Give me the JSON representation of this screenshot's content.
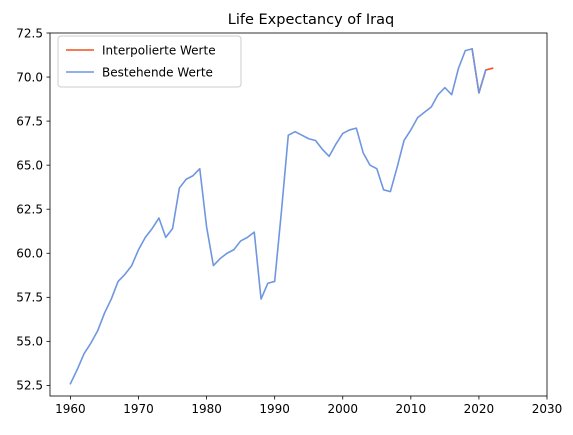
{
  "chart_data": {
    "type": "line",
    "title": "Life Expectancy of Iraq",
    "xlabel": "",
    "ylabel": "",
    "xlim": [
      1957,
      2030
    ],
    "ylim": [
      51.9,
      72.5
    ],
    "xticks": [
      1960,
      1970,
      1980,
      1990,
      2000,
      2010,
      2020,
      2030
    ],
    "yticks": [
      52.5,
      55.0,
      57.5,
      60.0,
      62.5,
      65.0,
      67.5,
      70.0,
      72.5
    ],
    "grid": false,
    "legend_position": "top-left",
    "series": [
      {
        "name": "Interpolierte Werte",
        "color": "#f4511e",
        "x": [
          2019,
          2020,
          2021,
          2022
        ],
        "y": [
          71.6,
          69.1,
          70.4,
          70.5
        ]
      },
      {
        "name": "Bestehende Werte",
        "color": "#6f96e0",
        "x": [
          1960,
          1961,
          1962,
          1963,
          1964,
          1965,
          1966,
          1967,
          1968,
          1969,
          1970,
          1971,
          1972,
          1973,
          1974,
          1975,
          1976,
          1977,
          1978,
          1979,
          1980,
          1981,
          1982,
          1983,
          1984,
          1985,
          1986,
          1987,
          1988,
          1989,
          1990,
          1991,
          1992,
          1993,
          1994,
          1995,
          1996,
          1997,
          1998,
          1999,
          2000,
          2001,
          2002,
          2003,
          2004,
          2005,
          2006,
          2007,
          2008,
          2009,
          2010,
          2011,
          2012,
          2013,
          2014,
          2015,
          2016,
          2017,
          2018,
          2019,
          2020,
          2021
        ],
        "y": [
          52.6,
          53.4,
          54.3,
          54.9,
          55.6,
          56.6,
          57.4,
          58.4,
          58.8,
          59.3,
          60.2,
          60.9,
          61.4,
          62.0,
          60.9,
          61.4,
          63.7,
          64.2,
          64.4,
          64.8,
          61.5,
          59.3,
          59.7,
          60.0,
          60.2,
          60.7,
          60.9,
          61.2,
          57.4,
          58.3,
          58.4,
          62.4,
          66.7,
          66.9,
          66.7,
          66.5,
          66.4,
          65.9,
          65.5,
          66.2,
          66.8,
          67.0,
          67.1,
          65.7,
          65.0,
          64.8,
          63.6,
          63.5,
          64.9,
          66.4,
          67.0,
          67.7,
          68.0,
          68.3,
          69.0,
          69.4,
          69.0,
          70.5,
          71.5,
          71.6,
          69.1,
          70.4
        ]
      }
    ]
  }
}
